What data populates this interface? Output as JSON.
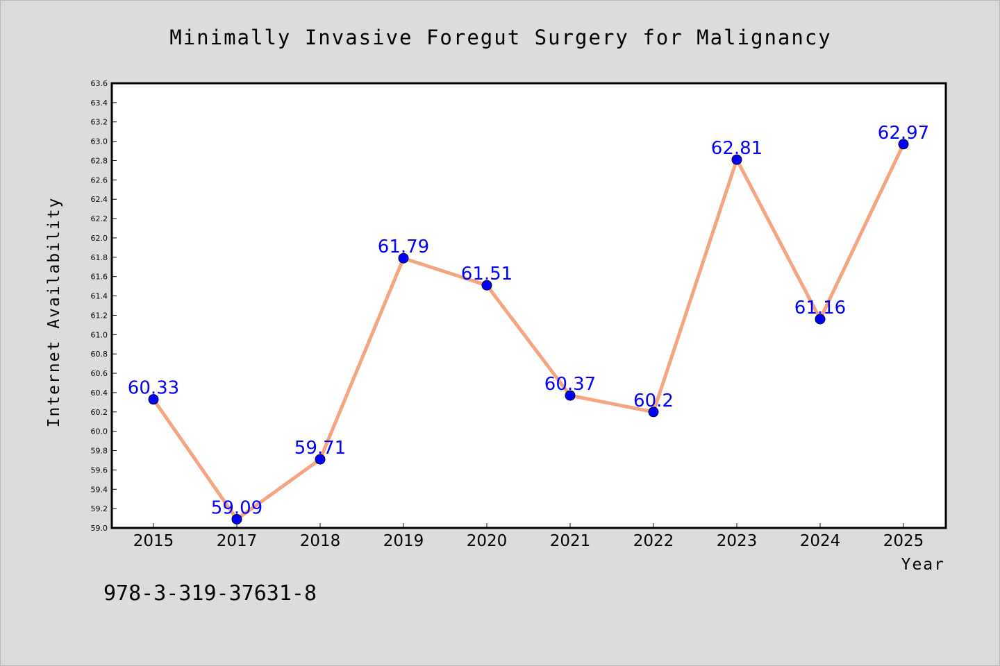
{
  "chart_data": {
    "type": "line",
    "title": "Minimally Invasive Foregut Surgery for Malignancy",
    "xlabel": "Year",
    "ylabel": "Internet Availability",
    "categories": [
      "2015",
      "2017",
      "2018",
      "2019",
      "2020",
      "2021",
      "2022",
      "2023",
      "2024",
      "2025"
    ],
    "series": [
      {
        "values": [
          60.33,
          59.09,
          59.71,
          61.79,
          61.51,
          60.37,
          60.2,
          62.81,
          61.16,
          62.97
        ],
        "labels": [
          "60.33",
          "59.09",
          "59.71",
          "61.79",
          "61.51",
          "60.37",
          "60.2",
          "62.81",
          "61.16",
          "62.97"
        ]
      }
    ],
    "ylim": [
      59.0,
      63.6
    ],
    "yticks": [
      "59.0",
      "59.2",
      "59.4",
      "59.6",
      "59.8",
      "60.0",
      "60.2",
      "60.4",
      "60.6",
      "60.8",
      "61.0",
      "61.2",
      "61.4",
      "61.6",
      "61.8",
      "62.0",
      "62.2",
      "62.4",
      "62.6",
      "62.8",
      "63.0",
      "63.2",
      "63.4",
      "63.6"
    ],
    "grid": false,
    "legend": "none",
    "colors": {
      "line": "#f4a582",
      "marker": "#0000ff",
      "label": "#0000ff",
      "plot_background": "#ffffff",
      "figure_background": "#dcdcdc"
    }
  },
  "footnote": "978-3-319-37631-8"
}
